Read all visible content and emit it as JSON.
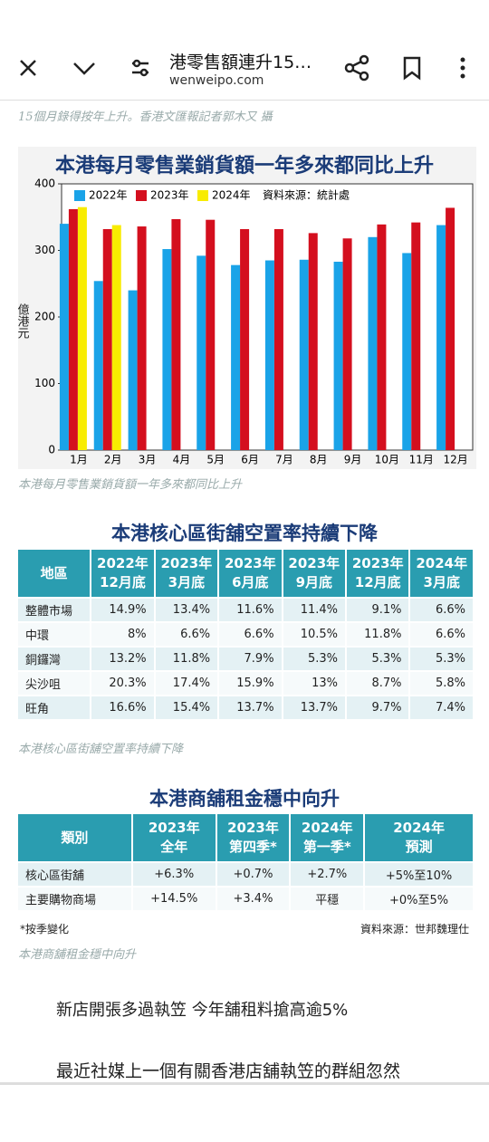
{
  "toolbar": {
    "title": "港零售額連升15…",
    "url": "wenweipo.com"
  },
  "top_caption": "15個月錄得按年上升。香港文匯報記者郭木又 攝",
  "chart_data": {
    "type": "bar",
    "title": "本港每月零售業銷貨額一年多來都同比上升",
    "y_label": "億港元",
    "source": "資料來源：統計處",
    "categories": [
      "1月",
      "2月",
      "3月",
      "4月",
      "5月",
      "6月",
      "7月",
      "8月",
      "9月",
      "10月",
      "11月",
      "12月"
    ],
    "series": [
      {
        "name": "2022年",
        "color": "#1aa3e8",
        "values": [
          340,
          254,
          240,
          302,
          292,
          278,
          285,
          286,
          283,
          320,
          296,
          338
        ]
      },
      {
        "name": "2023年",
        "color": "#d40f1e",
        "values": [
          362,
          332,
          336,
          347,
          346,
          332,
          332,
          326,
          318,
          339,
          342,
          364
        ]
      },
      {
        "name": "2024年",
        "color": "#f8ec00",
        "values": [
          365,
          338,
          null,
          null,
          null,
          null,
          null,
          null,
          null,
          null,
          null,
          null
        ]
      }
    ],
    "ylim": [
      0,
      400
    ],
    "yticks": [
      0,
      100,
      200,
      300,
      400
    ],
    "legend": "top-left"
  },
  "chart_caption": "本港每月零售業銷貨額一年多來都同比上升",
  "table1": {
    "title": "本港核心區街舖空置率持續下降",
    "header": [
      [
        "地區"
      ],
      [
        "2022年",
        "12月底"
      ],
      [
        "2023年",
        "3月底"
      ],
      [
        "2023年",
        "6月底"
      ],
      [
        "2023年",
        "9月底"
      ],
      [
        "2023年",
        "12月底"
      ],
      [
        "2024年",
        "3月底"
      ]
    ],
    "rows": [
      [
        "整體市場",
        "14.9%",
        "13.4%",
        "11.6%",
        "11.4%",
        "9.1%",
        "6.6%"
      ],
      [
        "中環",
        "8%",
        "6.6%",
        "6.6%",
        "10.5%",
        "11.8%",
        "6.6%"
      ],
      [
        "銅鑼灣",
        "13.2%",
        "11.8%",
        "7.9%",
        "5.3%",
        "5.3%",
        "5.3%"
      ],
      [
        "尖沙咀",
        "20.3%",
        "17.4%",
        "15.9%",
        "13%",
        "8.7%",
        "5.8%"
      ],
      [
        "旺角",
        "16.6%",
        "15.4%",
        "13.7%",
        "13.7%",
        "9.7%",
        "7.4%"
      ]
    ],
    "caption": "本港核心區街舖空置率持續下降"
  },
  "table2": {
    "title": "本港商舖租金穩中向升",
    "header": [
      [
        "類別"
      ],
      [
        "2023年",
        "全年"
      ],
      [
        "2023年",
        "第四季*"
      ],
      [
        "2024年",
        "第一季*"
      ],
      [
        "2024年",
        "預測"
      ]
    ],
    "rows": [
      [
        "核心區街舖",
        "+6.3%",
        "+0.7%",
        "+2.7%",
        "+5%至10%"
      ],
      [
        "主要購物商場",
        "+14.5%",
        "+3.4%",
        "平穩",
        "+0%至5%"
      ]
    ],
    "note": "*按季變化",
    "source": "資料來源：世邦魏理仕",
    "caption": "本港商舖租金穩中向升"
  },
  "article": {
    "headline": "新店開張多過執笠 今年舖租料搶高逾5%",
    "paragraph": "最近社媒上一個有關香港店舖執笠的群組忽然"
  }
}
